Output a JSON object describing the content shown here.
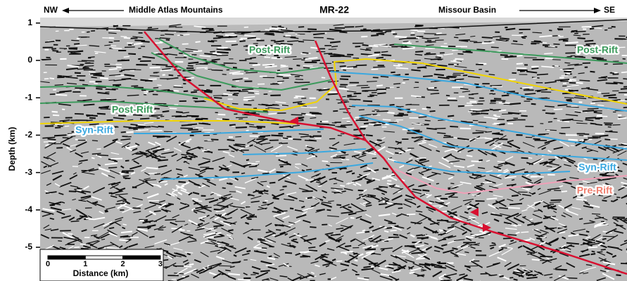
{
  "header": {
    "left_direction": "NW",
    "left_region": "Middle Atlas Mountains",
    "title": "MR-22",
    "right_region": "Missour Basin",
    "right_direction": "SE"
  },
  "y_axis": {
    "label": "Depth (km)",
    "ticks": [
      1,
      0,
      -1,
      -2,
      -3,
      -4,
      -5
    ]
  },
  "scale_bar": {
    "label": "Distance (km)",
    "ticks": [
      0,
      1,
      2,
      3
    ]
  },
  "annotations": [
    "Post-Rift",
    "Post-Rift",
    "Post-Rift",
    "Syn-Rift",
    "Syn-Rift",
    "Pre-Rift"
  ]
}
